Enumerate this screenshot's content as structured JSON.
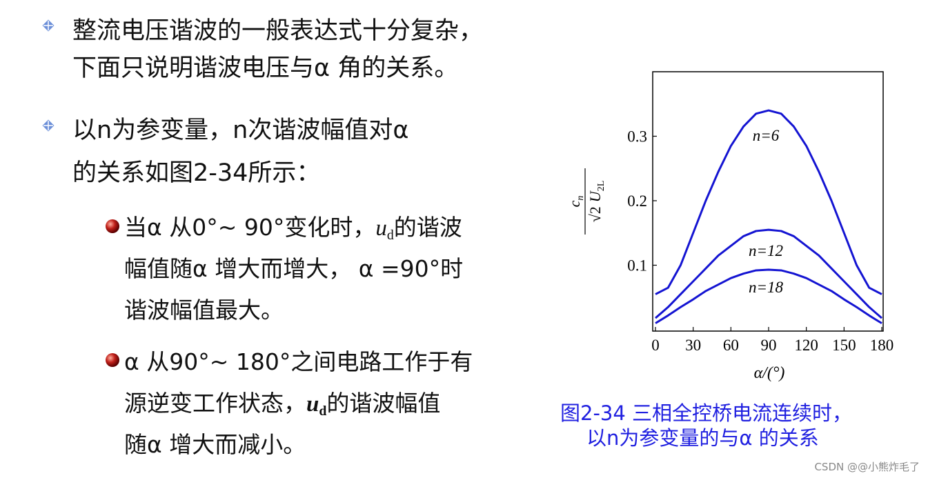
{
  "slide": {
    "bullets": [
      {
        "lines": [
          "整流电压谐波的一般表达式十分复杂，",
          "下面只说明谐波电压与α 角的关系。"
        ]
      },
      {
        "lines": [
          "以n为参变量，n次谐波幅值对α",
          "的关系如图2-34所示："
        ]
      }
    ],
    "subbullets": [
      {
        "line0": {
          "pre": "当α 从0°~ 90°变化时，",
          "var": "u",
          "subscript": "d",
          "post": "的谐波"
        },
        "lines": [
          "幅值随α 增大而增大， α =90°时",
          "谐波幅值最大。"
        ]
      },
      {
        "lines": [
          " α 从90°~ 180°之间电路工作于有",
          "随α 增大而减小。"
        ],
        "line1": {
          "pre": "源逆变工作状态，",
          "var": "u",
          "subscript": "d",
          "post": "的谐波幅值"
        }
      }
    ],
    "caption": [
      "图2-34  三相全控桥电流连续时，",
      "以n为参变量的与α 的关系"
    ],
    "watermark": "CSDN @@小熊炸毛了"
  },
  "chart_data": {
    "type": "line",
    "xlabel": "α/(°)",
    "ylabel": {
      "numerator": "c",
      "numerator_sub": "n",
      "root": "√2",
      "denominator": "U",
      "denominator_sub": "2L"
    },
    "x": [
      0,
      10,
      20,
      30,
      40,
      50,
      60,
      70,
      80,
      90,
      100,
      110,
      120,
      130,
      140,
      150,
      160,
      170,
      180
    ],
    "series": [
      {
        "name": "n=6",
        "color": "#1414d2",
        "values": [
          0.055,
          0.065,
          0.1,
          0.15,
          0.2,
          0.245,
          0.285,
          0.315,
          0.335,
          0.34,
          0.335,
          0.315,
          0.285,
          0.245,
          0.2,
          0.15,
          0.1,
          0.065,
          0.055
        ]
      },
      {
        "name": "n=12",
        "color": "#1414d2",
        "values": [
          0.018,
          0.035,
          0.055,
          0.075,
          0.095,
          0.115,
          0.13,
          0.145,
          0.153,
          0.155,
          0.153,
          0.145,
          0.13,
          0.115,
          0.095,
          0.075,
          0.055,
          0.035,
          0.018
        ]
      },
      {
        "name": "n=18",
        "color": "#1414d2",
        "values": [
          0.01,
          0.022,
          0.035,
          0.047,
          0.06,
          0.07,
          0.08,
          0.087,
          0.092,
          0.093,
          0.092,
          0.087,
          0.08,
          0.07,
          0.06,
          0.047,
          0.035,
          0.022,
          0.01
        ]
      }
    ],
    "xlim": [
      0,
      180
    ],
    "xticks": [
      0,
      30,
      60,
      90,
      120,
      150,
      180
    ],
    "ylim": [
      0,
      0.4
    ],
    "yticks": [
      0.1,
      0.2,
      0.3
    ]
  }
}
